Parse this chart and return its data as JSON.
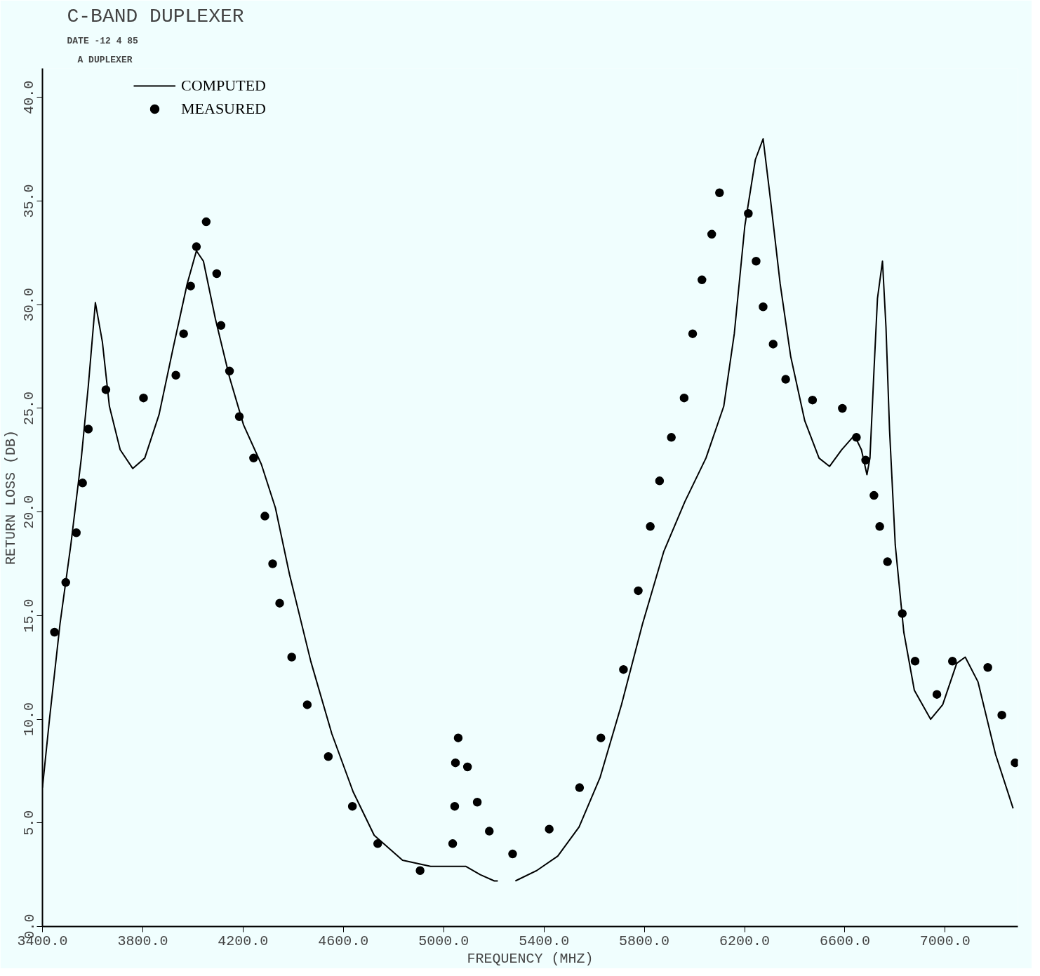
{
  "chart_data": {
    "type": "line",
    "title": "C-BAND DUPLEXER",
    "subtitle": "DATE -12 4 85",
    "annotations": [
      "A DUPLEXER"
    ],
    "xlabel": "FREQUENCY (MHZ)",
    "ylabel": "RETURN LOSS (DB)",
    "xlim": [
      3400,
      7290
    ],
    "ylim": [
      0,
      41.4
    ],
    "xticks": [
      {
        "value": 3400,
        "label": "3400.0"
      },
      {
        "value": 3800,
        "label": "3800.0"
      },
      {
        "value": 4200,
        "label": "4200.0"
      },
      {
        "value": 4600,
        "label": "4600.0"
      },
      {
        "value": 5000,
        "label": "5000.0"
      },
      {
        "value": 5400,
        "label": "5400.0"
      },
      {
        "value": 5800,
        "label": "5800.0"
      },
      {
        "value": 6200,
        "label": "6200.0"
      },
      {
        "value": 6600,
        "label": "6600.0"
      },
      {
        "value": 7000,
        "label": "7000.0"
      }
    ],
    "yticks": [
      {
        "value": 0,
        "label": "0.0"
      },
      {
        "value": 5,
        "label": "5.0"
      },
      {
        "value": 10,
        "label": "10.0"
      },
      {
        "value": 15,
        "label": "15.0"
      },
      {
        "value": 20,
        "label": "20.0"
      },
      {
        "value": 25,
        "label": "25.0"
      },
      {
        "value": 30,
        "label": "30.0"
      },
      {
        "value": 35,
        "label": "35.0"
      },
      {
        "value": 40,
        "label": "40.0"
      }
    ],
    "grid": false,
    "legend": "top left",
    "series": [
      {
        "name": "COMPUTED",
        "color": "#000000",
        "marker": "none",
        "line_style": "solid",
        "x": [
          3400,
          3428,
          3470,
          3513,
          3555,
          3583,
          3611,
          3639,
          3667,
          3710,
          3760,
          3808,
          3865,
          3921,
          3977,
          4014,
          4042,
          4090,
          4146,
          4202,
          4273,
          4329,
          4385,
          4470,
          4554,
          4639,
          4723,
          4836,
          4948,
          5089,
          5146,
          5202,
          5216,
          5250,
          5286,
          5371,
          5455,
          5540,
          5624,
          5709,
          5793,
          5878,
          5962,
          6046,
          6117,
          6159,
          6201,
          6243,
          6274,
          6305,
          6342,
          6384,
          6440,
          6497,
          6539,
          6587,
          6638,
          6666,
          6688,
          6700,
          6716,
          6730,
          6750,
          6764,
          6778,
          6801,
          6835,
          6877,
          6942,
          6990,
          7046,
          7080,
          7131,
          7201,
          7271
        ],
        "values": [
          6.7,
          10.0,
          14.6,
          18.4,
          22.6,
          26.1,
          30.1,
          28.2,
          25.1,
          23.0,
          22.1,
          22.6,
          24.7,
          27.9,
          31.0,
          32.6,
          32.1,
          29.3,
          26.5,
          24.2,
          22.3,
          20.2,
          17.0,
          12.8,
          9.3,
          6.5,
          4.4,
          3.2,
          2.9,
          2.9,
          2.5,
          2.2,
          2.2,
          null,
          2.2,
          2.7,
          3.4,
          4.8,
          7.2,
          10.7,
          14.6,
          18.1,
          20.5,
          22.6,
          25.1,
          28.6,
          33.8,
          37.0,
          38.0,
          34.9,
          31.0,
          27.5,
          24.4,
          22.6,
          22.2,
          23.0,
          23.7,
          23.0,
          21.8,
          22.6,
          26.8,
          30.3,
          32.1,
          28.9,
          24.0,
          18.4,
          14.2,
          11.4,
          10.0,
          10.7,
          12.7,
          13.0,
          11.8,
          8.3,
          5.7
        ]
      },
      {
        "name": "MEASURED",
        "type": "scatter",
        "color": "#000000",
        "marker": "circle",
        "x": [
          3448,
          3493,
          3535,
          3560,
          3583,
          3653,
          3803,
          3932,
          3963,
          3991,
          4014,
          4053,
          4095,
          4112,
          4146,
          4185,
          4242,
          4287,
          4318,
          4346,
          4394,
          4456,
          4540,
          4636,
          4737,
          4906,
          5036,
          5044,
          5047,
          5058,
          5095,
          5134,
          5182,
          5275,
          5421,
          5542,
          5627,
          5717,
          5776,
          5824,
          5861,
          5908,
          5959,
          5993,
          6030,
          6069,
          6100,
          6215,
          6246,
          6274,
          6314,
          6364,
          6471,
          6590,
          6646,
          6683,
          6716,
          6739,
          6770,
          6829,
          6880,
          6967,
          7029,
          7170,
          7226,
          7279
        ],
        "values": [
          14.2,
          16.6,
          19.0,
          21.4,
          24.0,
          25.9,
          25.5,
          26.6,
          28.6,
          30.9,
          32.8,
          34.0,
          31.5,
          29.0,
          26.8,
          24.6,
          22.6,
          19.8,
          17.5,
          15.6,
          13.0,
          10.7,
          8.2,
          5.8,
          4.0,
          2.7,
          4.0,
          5.8,
          7.9,
          9.1,
          7.7,
          6.0,
          4.6,
          3.5,
          4.7,
          6.7,
          9.1,
          12.4,
          16.2,
          19.3,
          21.5,
          23.6,
          25.5,
          28.6,
          31.2,
          33.4,
          35.4,
          34.4,
          32.1,
          29.9,
          28.1,
          26.4,
          25.4,
          25.0,
          23.6,
          22.5,
          20.8,
          19.3,
          17.6,
          15.1,
          12.8,
          11.2,
          12.8,
          12.5,
          10.2,
          7.9
        ]
      }
    ]
  }
}
